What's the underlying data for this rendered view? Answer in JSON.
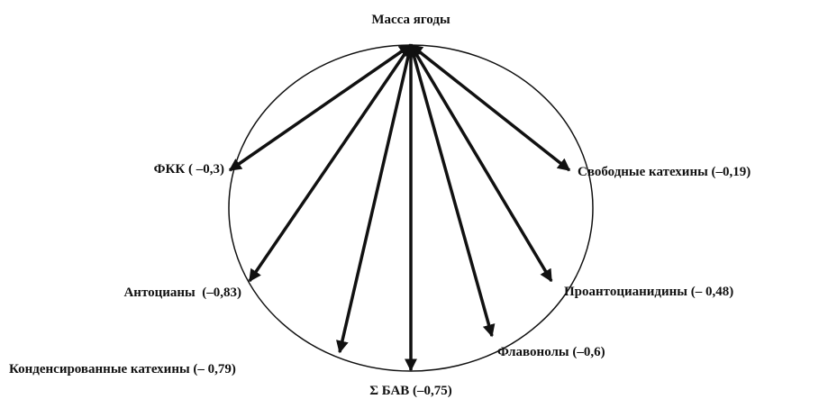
{
  "center": {
    "label": "Масса ягоды"
  },
  "nodes": [
    {
      "label": "ФКК ( –0,3)"
    },
    {
      "label": "Свободные катехины (–0,19)"
    },
    {
      "label": "Антоцианы  (–0,83)"
    },
    {
      "label": "Проантоцианидины (– 0,48)"
    },
    {
      "label": "Флавонолы (–0,6)"
    },
    {
      "label": "Конденсированные катехины (– 0,79)"
    },
    {
      "label": "Σ БАВ (–0,75)"
    }
  ]
}
